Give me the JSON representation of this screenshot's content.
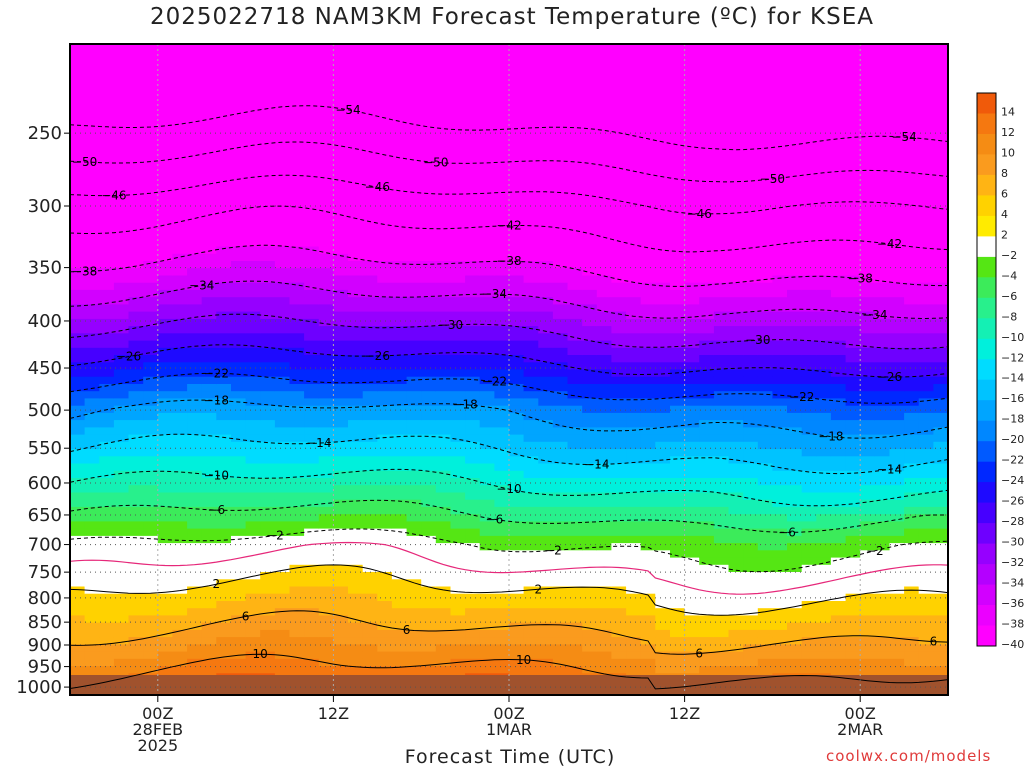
{
  "title": "2025022718 NAM3KM Forecast Temperature (ºC) for KSEA",
  "credit": "coolwx.com/models",
  "chart_data": {
    "type": "heatmap",
    "title": "2025022718 NAM3KM Forecast Temperature (ºC) for KSEA",
    "xlabel": "Forecast Time (UTC)",
    "ylabel": "",
    "x_ticks": [
      {
        "hour": 6,
        "lines": [
          "00Z",
          "28FEB",
          "2025"
        ]
      },
      {
        "hour": 18,
        "lines": [
          "12Z"
        ]
      },
      {
        "hour": 30,
        "lines": [
          "00Z",
          "1MAR"
        ]
      },
      {
        "hour": 42,
        "lines": [
          "12Z"
        ]
      },
      {
        "hour": 54,
        "lines": [
          "00Z",
          "2MAR"
        ]
      }
    ],
    "x_range_hours": [
      0,
      60
    ],
    "y_ticks_hpa": [
      250,
      300,
      350,
      400,
      450,
      500,
      550,
      600,
      650,
      700,
      750,
      800,
      850,
      900,
      950,
      1000
    ],
    "y_range_hpa": [
      200,
      1020
    ],
    "y_scale": "log-pressure",
    "colorbar": {
      "labels": [
        "14",
        "12",
        "10",
        "8",
        "6",
        "4",
        "2",
        "-2",
        "-4",
        "-6",
        "-8",
        "-10",
        "-12",
        "-14",
        "-16",
        "-18",
        "-20",
        "-22",
        "-24",
        "-26",
        "-28",
        "-30",
        "-32",
        "-34",
        "-36",
        "-38",
        "-40"
      ],
      "colors": [
        "#f05a0a",
        "#f57810",
        "#f58c14",
        "#fa9b1e",
        "#ffb414",
        "#ffd200",
        "#ffeb00",
        "#ffffff",
        "#55e614",
        "#3ceb5a",
        "#28f08c",
        "#14f0b4",
        "#00f0dc",
        "#00dcff",
        "#00c3ff",
        "#00a5ff",
        "#0087ff",
        "#005aff",
        "#0028ff",
        "#1e0aff",
        "#4600ff",
        "#6e00ff",
        "#9600ff",
        "#b400ff",
        "#d200ff",
        "#eb00ff",
        "#ff00ff"
      ]
    },
    "contours": [
      {
        "value": -54,
        "labels_at_hours": [
          19,
          57
        ]
      },
      {
        "value": -50,
        "labels_at_hours": [
          1,
          25,
          48
        ]
      },
      {
        "value": -46,
        "labels_at_hours": [
          3,
          21,
          43
        ]
      },
      {
        "value": -42,
        "labels_at_hours": [
          30,
          56
        ]
      },
      {
        "value": -38,
        "labels_at_hours": [
          1,
          30,
          54
        ]
      },
      {
        "value": -34,
        "labels_at_hours": [
          9,
          29,
          55
        ]
      },
      {
        "value": -30,
        "labels_at_hours": [
          26,
          47
        ]
      },
      {
        "value": -26,
        "labels_at_hours": [
          4,
          21,
          56
        ]
      },
      {
        "value": -22,
        "labels_at_hours": [
          10,
          29,
          50
        ]
      },
      {
        "value": -18,
        "labels_at_hours": [
          10,
          27,
          52
        ]
      },
      {
        "value": -14,
        "labels_at_hours": [
          17,
          36,
          56
        ]
      },
      {
        "value": -10,
        "labels_at_hours": [
          10,
          30
        ]
      },
      {
        "value": -6,
        "labels_at_hours": [
          10,
          29,
          49
        ]
      },
      {
        "value": -2,
        "labels_at_hours": [
          14,
          33,
          55
        ]
      },
      {
        "value": 2,
        "labels_at_hours": [
          10,
          32
        ]
      },
      {
        "value": 6,
        "labels_at_hours": [
          12,
          23,
          43,
          59
        ]
      },
      {
        "value": 10,
        "labels_at_hours": [
          13,
          31,
          51
        ]
      }
    ],
    "freezing_line_color": "#e6287a",
    "ground_color": "#a0522d",
    "grid": true
  }
}
